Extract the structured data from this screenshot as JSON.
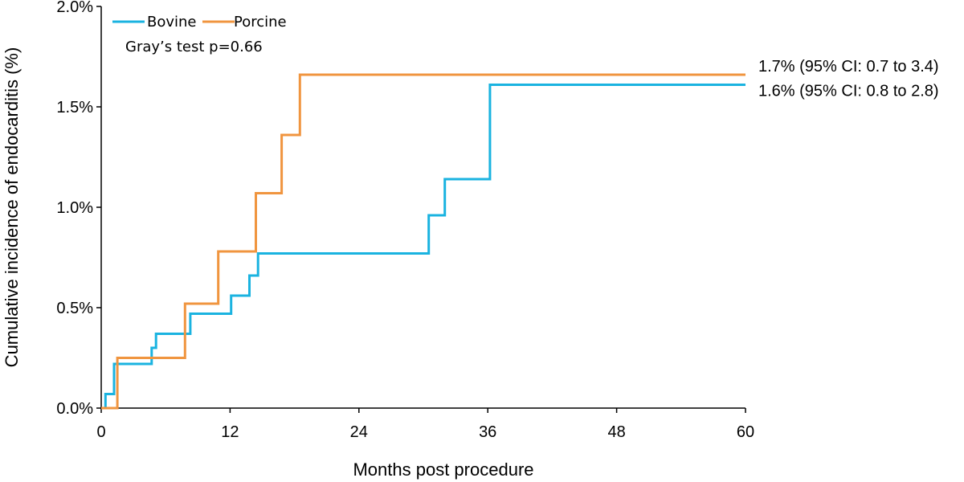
{
  "chart_data": {
    "type": "line",
    "step": true,
    "xlabel": "Months post procedure",
    "ylabel": "Cumulative incidence of endocarditis (%)",
    "xlim": [
      0,
      60
    ],
    "ylim": [
      0,
      2.0
    ],
    "xticks": [
      0,
      12,
      24,
      36,
      48,
      60
    ],
    "yticks": [
      0.0,
      0.5,
      1.0,
      1.5,
      2.0
    ],
    "ytick_labels": [
      "0.0%",
      "0.5%",
      "1.0%",
      "1.5%",
      "2.0%"
    ],
    "grid": false,
    "legend_position": "top-left",
    "annotation": "Gray’s test p=0.66",
    "series": [
      {
        "name": "Bovine",
        "color": "#1AB3E0",
        "x": [
          0,
          0.4,
          1.0,
          1.2,
          4.2,
          4.7,
          5.1,
          8.0,
          8.3,
          11.0,
          12.1,
          13.0,
          13.8,
          14.6,
          28.7,
          30.5,
          32.0,
          34.0,
          36.2,
          60
        ],
        "y": [
          0.0,
          0.07,
          0.07,
          0.22,
          0.22,
          0.3,
          0.37,
          0.37,
          0.47,
          0.47,
          0.56,
          0.56,
          0.66,
          0.77,
          0.77,
          0.96,
          1.14,
          1.14,
          1.61,
          1.61
        ],
        "end_label": "1.6% (95% CI: 0.8 to 2.8)"
      },
      {
        "name": "Porcine",
        "color": "#F0953F",
        "x": [
          0,
          1.5,
          7.8,
          10.9,
          14.4,
          16.8,
          18.5,
          60
        ],
        "y": [
          0.0,
          0.25,
          0.52,
          0.78,
          1.07,
          1.36,
          1.66,
          1.66
        ],
        "end_label": "1.7% (95% CI: 0.7 to 3.4)"
      }
    ]
  }
}
